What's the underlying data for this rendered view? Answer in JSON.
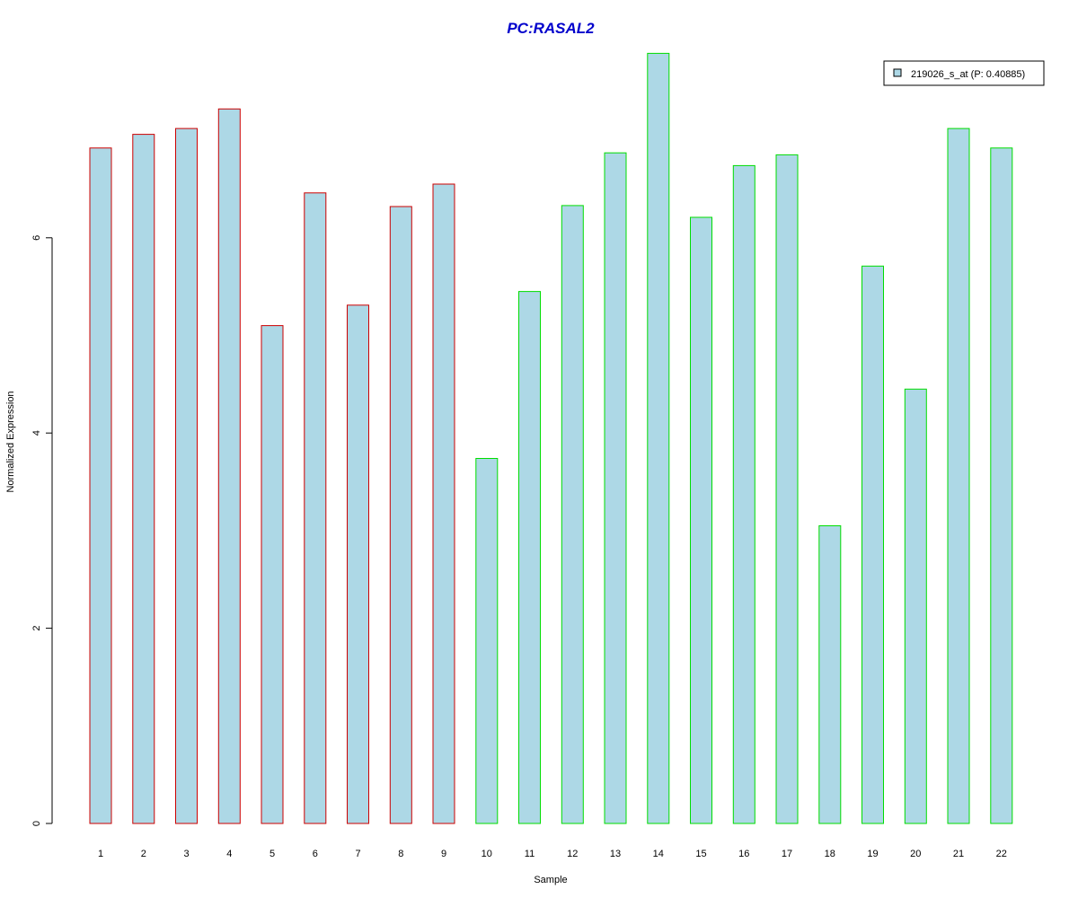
{
  "chart_data": {
    "type": "bar",
    "title": "PC:RASAL2",
    "title_color": "#0000CC",
    "xlabel": "Sample",
    "ylabel": "Normalized Expression",
    "categories": [
      "1",
      "2",
      "3",
      "4",
      "5",
      "6",
      "7",
      "8",
      "9",
      "10",
      "11",
      "12",
      "13",
      "14",
      "15",
      "16",
      "17",
      "18",
      "19",
      "20",
      "21",
      "22"
    ],
    "series": [
      {
        "name": "219026_s_at (P: 0.40885)",
        "values": [
          6.92,
          7.06,
          7.12,
          7.32,
          5.1,
          6.46,
          5.31,
          6.32,
          6.55,
          3.74,
          5.45,
          6.33,
          6.87,
          7.89,
          6.21,
          6.74,
          6.85,
          3.05,
          5.71,
          4.45,
          7.12,
          6.92
        ],
        "fill": "#ADD8E6"
      }
    ],
    "bar_outline_colors": [
      "#CC0000",
      "#CC0000",
      "#CC0000",
      "#CC0000",
      "#CC0000",
      "#CC0000",
      "#CC0000",
      "#CC0000",
      "#CC0000",
      "#00DD00",
      "#00DD00",
      "#00DD00",
      "#00DD00",
      "#00DD00",
      "#00DD00",
      "#00DD00",
      "#00DD00",
      "#00DD00",
      "#00DD00",
      "#00DD00",
      "#00DD00",
      "#00DD00"
    ],
    "yticks": [
      0,
      2,
      4,
      6
    ],
    "ylim": [
      0,
      7.89
    ],
    "grid": false,
    "legend_position": "top-right"
  }
}
